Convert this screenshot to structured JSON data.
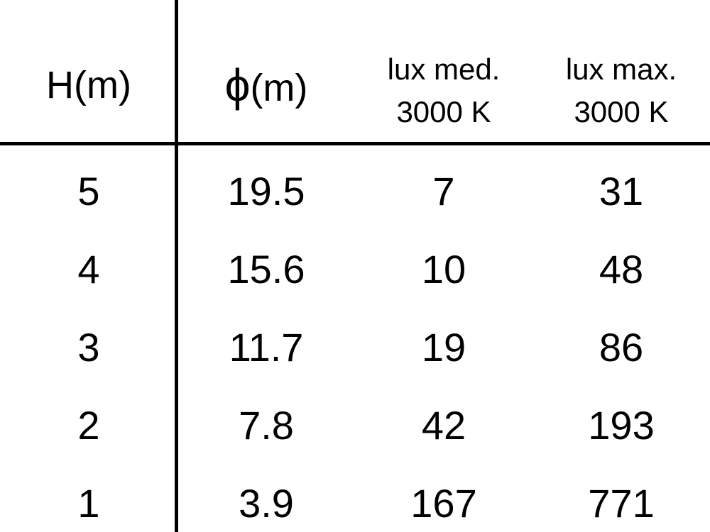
{
  "table": {
    "headers": [
      {
        "line1": "H(m)"
      },
      {
        "symbol": "ϕ",
        "unit": "(m)"
      },
      {
        "line1": "lux med.",
        "line2": "3000 K"
      },
      {
        "line1": "lux max.",
        "line2": "3000 K"
      }
    ],
    "rows": [
      [
        "5",
        "19.5",
        "7",
        "31"
      ],
      [
        "4",
        "15.6",
        "10",
        "48"
      ],
      [
        "3",
        "11.7",
        "19",
        "86"
      ],
      [
        "2",
        "7.8",
        "42",
        "193"
      ],
      [
        "1",
        "3.9",
        "167",
        "771"
      ]
    ]
  }
}
